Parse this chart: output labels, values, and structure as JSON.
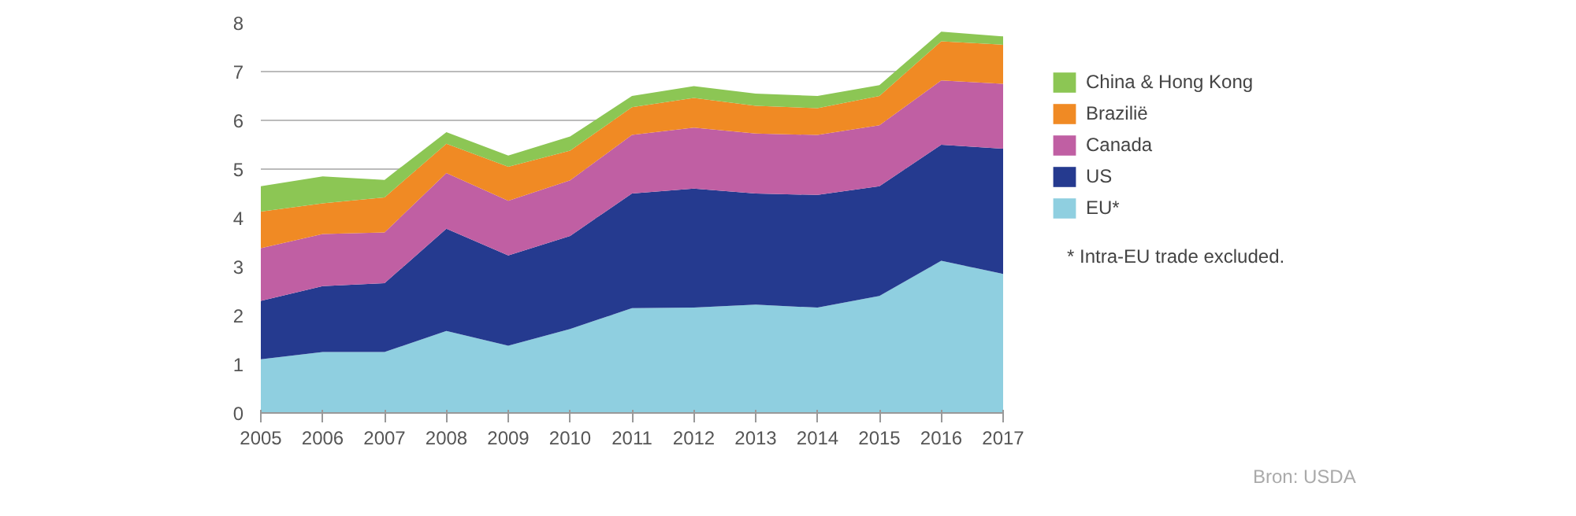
{
  "chart_data": {
    "type": "area",
    "stacked": true,
    "x": [
      2005,
      2006,
      2007,
      2008,
      2009,
      2010,
      2011,
      2012,
      2013,
      2014,
      2015,
      2016,
      2017
    ],
    "series": [
      {
        "name": "EU*",
        "color": "#8fcfe0",
        "values": [
          1.1,
          1.25,
          1.25,
          1.68,
          1.38,
          1.72,
          2.15,
          2.16,
          2.22,
          2.16,
          2.4,
          3.12,
          2.85
        ]
      },
      {
        "name": "US",
        "color": "#253a8f",
        "values": [
          1.2,
          1.35,
          1.41,
          2.1,
          1.85,
          1.91,
          2.35,
          2.44,
          2.28,
          2.31,
          2.25,
          2.38,
          2.57
        ]
      },
      {
        "name": "Canada",
        "color": "#c05fa3",
        "values": [
          1.08,
          1.07,
          1.04,
          1.14,
          1.12,
          1.14,
          1.2,
          1.25,
          1.23,
          1.23,
          1.25,
          1.32,
          1.33
        ]
      },
      {
        "name": "Brazilië",
        "color": "#f08a24",
        "values": [
          0.75,
          0.63,
          0.72,
          0.6,
          0.7,
          0.61,
          0.57,
          0.61,
          0.57,
          0.55,
          0.6,
          0.8,
          0.8
        ]
      },
      {
        "name": "China & Hong Kong",
        "color": "#8cc654",
        "values": [
          0.52,
          0.55,
          0.36,
          0.24,
          0.23,
          0.29,
          0.23,
          0.24,
          0.25,
          0.25,
          0.22,
          0.2,
          0.17
        ]
      }
    ],
    "xlim": [
      2005,
      2017
    ],
    "xticks": [
      2005,
      2006,
      2007,
      2008,
      2009,
      2010,
      2011,
      2012,
      2013,
      2014,
      2015,
      2016,
      2017
    ],
    "ylim": [
      0,
      8
    ],
    "yticks": [
      0,
      1,
      2,
      3,
      4,
      5,
      6,
      7,
      8
    ],
    "grid": "y",
    "legend": "right",
    "annotations": [
      "* Intra-EU trade excluded.",
      "Bron: USDA"
    ]
  }
}
